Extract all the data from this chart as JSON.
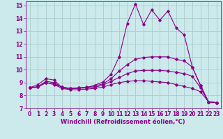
{
  "xlabel": "Windchill (Refroidissement éolien,°C)",
  "bg_color": "#cce9ec",
  "grid_color": "#aacccc",
  "line_color": "#880088",
  "xlim": [
    -0.5,
    23.5
  ],
  "ylim": [
    7,
    15.3
  ],
  "xticks": [
    0,
    1,
    2,
    3,
    4,
    5,
    6,
    7,
    8,
    9,
    10,
    11,
    12,
    13,
    14,
    15,
    16,
    17,
    18,
    19,
    20,
    21,
    22,
    23
  ],
  "yticks": [
    7,
    8,
    9,
    10,
    11,
    12,
    13,
    14,
    15
  ],
  "lines": [
    {
      "x": [
        0,
        1,
        2,
        3,
        4,
        5,
        6,
        7,
        8,
        9,
        10,
        11,
        12,
        13,
        14,
        15,
        16,
        17,
        18,
        19,
        20,
        21,
        22,
        23
      ],
      "y": [
        8.6,
        8.85,
        9.3,
        9.2,
        8.6,
        8.5,
        8.6,
        8.6,
        8.8,
        9.05,
        9.65,
        11.0,
        13.6,
        15.1,
        13.5,
        14.65,
        13.85,
        14.55,
        13.25,
        12.7,
        10.2,
        8.8,
        7.5,
        7.45
      ]
    },
    {
      "x": [
        0,
        1,
        2,
        3,
        4,
        5,
        6,
        7,
        8,
        9,
        10,
        11,
        12,
        13,
        14,
        15,
        16,
        17,
        18,
        19,
        20,
        21,
        22,
        23
      ],
      "y": [
        8.6,
        8.7,
        9.1,
        9.0,
        8.65,
        8.55,
        8.6,
        8.65,
        8.75,
        8.9,
        9.3,
        9.9,
        10.4,
        10.8,
        10.95,
        11.0,
        11.0,
        11.0,
        10.8,
        10.7,
        10.2,
        8.8,
        7.5,
        7.45
      ]
    },
    {
      "x": [
        0,
        1,
        2,
        3,
        4,
        5,
        6,
        7,
        8,
        9,
        10,
        11,
        12,
        13,
        14,
        15,
        16,
        17,
        18,
        19,
        20,
        21,
        22,
        23
      ],
      "y": [
        8.6,
        8.65,
        9.0,
        8.9,
        8.65,
        8.55,
        8.55,
        8.6,
        8.65,
        8.8,
        9.1,
        9.4,
        9.7,
        9.9,
        9.95,
        9.95,
        9.95,
        9.9,
        9.8,
        9.7,
        9.5,
        8.6,
        7.5,
        7.45
      ]
    },
    {
      "x": [
        0,
        1,
        2,
        3,
        4,
        5,
        6,
        7,
        8,
        9,
        10,
        11,
        12,
        13,
        14,
        15,
        16,
        17,
        18,
        19,
        20,
        21,
        22,
        23
      ],
      "y": [
        8.6,
        8.65,
        9.0,
        8.85,
        8.55,
        8.45,
        8.45,
        8.5,
        8.55,
        8.65,
        8.85,
        9.0,
        9.1,
        9.15,
        9.15,
        9.1,
        9.05,
        9.0,
        8.85,
        8.7,
        8.55,
        8.3,
        7.5,
        7.45
      ]
    }
  ]
}
